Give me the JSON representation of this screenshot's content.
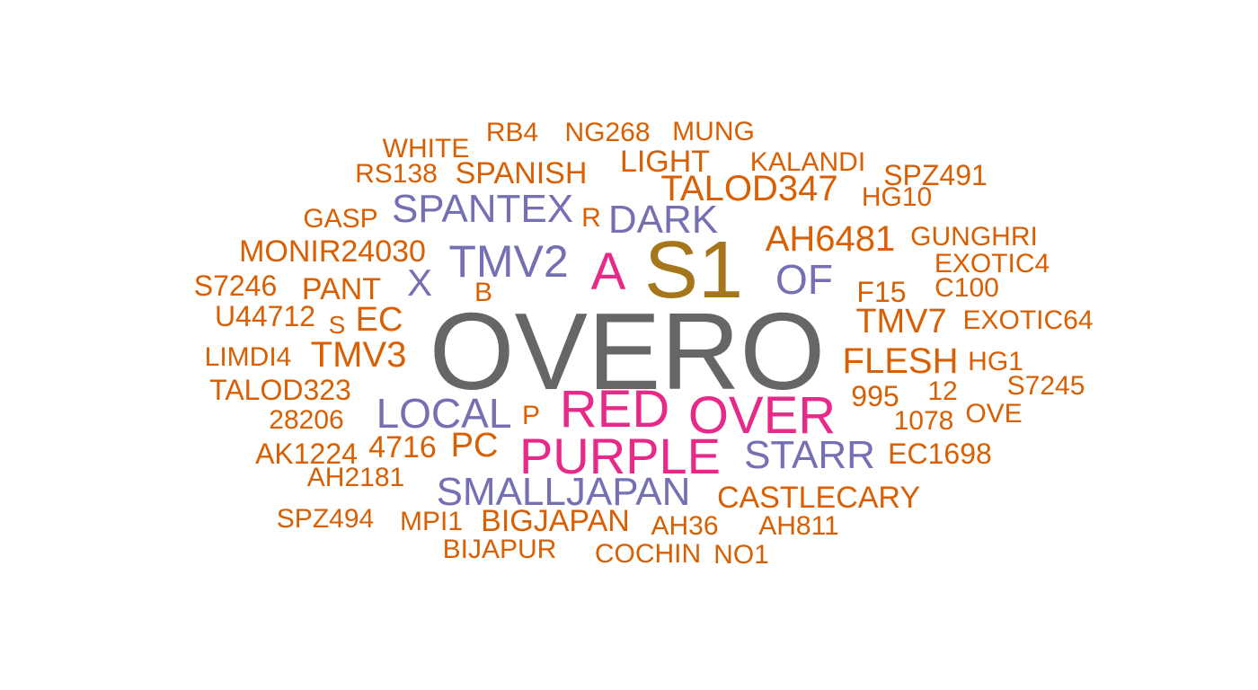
{
  "colors": {
    "gray": "#666666",
    "olive": "#A6761D",
    "magenta": "#E7298A",
    "purple": "#7570B3",
    "orange": "#D95F02"
  },
  "words": [
    {
      "text": "OVERO",
      "color": "gray"
    },
    {
      "text": "S1",
      "color": "olive"
    },
    {
      "text": "A",
      "color": "magenta"
    },
    {
      "text": "RED",
      "color": "magenta"
    },
    {
      "text": "OVER",
      "color": "magenta"
    },
    {
      "text": "PURPLE",
      "color": "magenta"
    },
    {
      "text": "TMV2",
      "color": "purple"
    },
    {
      "text": "SPANTEX",
      "color": "purple"
    },
    {
      "text": "DARK",
      "color": "purple"
    },
    {
      "text": "X",
      "color": "purple"
    },
    {
      "text": "OF",
      "color": "purple"
    },
    {
      "text": "LOCAL",
      "color": "purple"
    },
    {
      "text": "STARR",
      "color": "purple"
    },
    {
      "text": "SMALLJAPAN",
      "color": "purple"
    },
    {
      "text": "WHITE",
      "color": "orange"
    },
    {
      "text": "RB4",
      "color": "orange"
    },
    {
      "text": "NG268",
      "color": "orange"
    },
    {
      "text": "MUNG",
      "color": "orange"
    },
    {
      "text": "LIGHT",
      "color": "orange"
    },
    {
      "text": "KALANDI",
      "color": "orange"
    },
    {
      "text": "RS138",
      "color": "orange"
    },
    {
      "text": "SPANISH",
      "color": "orange"
    },
    {
      "text": "SPZ491",
      "color": "orange"
    },
    {
      "text": "TALOD347",
      "color": "orange"
    },
    {
      "text": "HG10",
      "color": "orange"
    },
    {
      "text": "GASP",
      "color": "orange"
    },
    {
      "text": "R",
      "color": "orange"
    },
    {
      "text": "AH6481",
      "color": "orange"
    },
    {
      "text": "GUNGHRI",
      "color": "orange"
    },
    {
      "text": "MONIR24030",
      "color": "orange"
    },
    {
      "text": "EXOTIC4",
      "color": "orange"
    },
    {
      "text": "S7246",
      "color": "orange"
    },
    {
      "text": "PANT",
      "color": "orange"
    },
    {
      "text": "B",
      "color": "orange"
    },
    {
      "text": "F15",
      "color": "orange"
    },
    {
      "text": "C100",
      "color": "orange"
    },
    {
      "text": "U44712",
      "color": "orange"
    },
    {
      "text": "S",
      "color": "orange"
    },
    {
      "text": "EC",
      "color": "orange"
    },
    {
      "text": "TMV7",
      "color": "orange"
    },
    {
      "text": "EXOTIC64",
      "color": "orange"
    },
    {
      "text": "LIMDI4",
      "color": "orange"
    },
    {
      "text": "TMV3",
      "color": "orange"
    },
    {
      "text": "FLESH",
      "color": "orange"
    },
    {
      "text": "HG1",
      "color": "orange"
    },
    {
      "text": "TALOD323",
      "color": "orange"
    },
    {
      "text": "995",
      "color": "orange"
    },
    {
      "text": "12",
      "color": "orange"
    },
    {
      "text": "S7245",
      "color": "orange"
    },
    {
      "text": "28206",
      "color": "orange"
    },
    {
      "text": "P",
      "color": "orange"
    },
    {
      "text": "1078",
      "color": "orange"
    },
    {
      "text": "OVE",
      "color": "orange"
    },
    {
      "text": "AK1224",
      "color": "orange"
    },
    {
      "text": "4716",
      "color": "orange"
    },
    {
      "text": "PC",
      "color": "orange"
    },
    {
      "text": "EC1698",
      "color": "orange"
    },
    {
      "text": "AH2181",
      "color": "orange"
    },
    {
      "text": "CASTLECARY",
      "color": "orange"
    },
    {
      "text": "SPZ494",
      "color": "orange"
    },
    {
      "text": "MPI1",
      "color": "orange"
    },
    {
      "text": "BIGJAPAN",
      "color": "orange"
    },
    {
      "text": "AH36",
      "color": "orange"
    },
    {
      "text": "AH811",
      "color": "orange"
    },
    {
      "text": "BIJAPUR",
      "color": "orange"
    },
    {
      "text": "COCHIN",
      "color": "orange"
    },
    {
      "text": "NO1",
      "color": "orange"
    }
  ]
}
